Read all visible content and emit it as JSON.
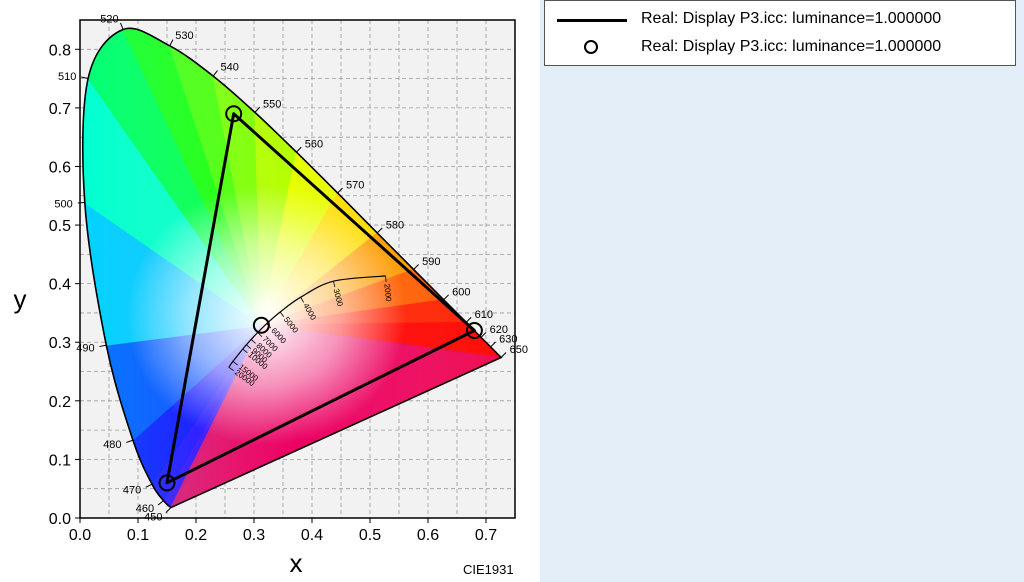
{
  "legend": {
    "entries": [
      {
        "label": "Real: Display P3.icc: luminance=1.000000",
        "symbol": "line"
      },
      {
        "label": "Real: Display P3.icc: luminance=1.000000",
        "symbol": "circle"
      }
    ]
  },
  "footer_label": "CIE1931",
  "chart_data": {
    "type": "scatter",
    "xlabel": "x",
    "ylabel": "y",
    "xlim": [
      0.0,
      0.75
    ],
    "ylim": [
      0.0,
      0.85
    ],
    "xticks": [
      "0.0",
      "0.1",
      "0.2",
      "0.3",
      "0.4",
      "0.5",
      "0.6",
      "0.7"
    ],
    "yticks": [
      "0.0",
      "0.1",
      "0.2",
      "0.3",
      "0.4",
      "0.5",
      "0.6",
      "0.7",
      "0.8"
    ],
    "grid": true,
    "legend_placement": "top-right",
    "spectral_locus": [
      {
        "wl": "450",
        "x": 0.1566,
        "y": 0.0177
      },
      {
        "wl": "460",
        "x": 0.144,
        "y": 0.0297
      },
      {
        "wl": "470",
        "x": 0.1241,
        "y": 0.0578
      },
      {
        "wl": "480",
        "x": 0.0913,
        "y": 0.1327
      },
      {
        "wl": "490",
        "x": 0.0454,
        "y": 0.295
      },
      {
        "wl": "500",
        "x": 0.0082,
        "y": 0.5384
      },
      {
        "wl": "510",
        "x": 0.0139,
        "y": 0.7502
      },
      {
        "wl": "520",
        "x": 0.0743,
        "y": 0.8338
      },
      {
        "wl": "530",
        "x": 0.1547,
        "y": 0.8059
      },
      {
        "wl": "540",
        "x": 0.2296,
        "y": 0.7543
      },
      {
        "wl": "550",
        "x": 0.3016,
        "y": 0.6923
      },
      {
        "wl": "560",
        "x": 0.3731,
        "y": 0.6245
      },
      {
        "wl": "570",
        "x": 0.4441,
        "y": 0.5547
      },
      {
        "wl": "580",
        "x": 0.5125,
        "y": 0.4866
      },
      {
        "wl": "590",
        "x": 0.5752,
        "y": 0.4242
      },
      {
        "wl": "600",
        "x": 0.627,
        "y": 0.3725
      },
      {
        "wl": "610",
        "x": 0.6658,
        "y": 0.334
      },
      {
        "wl": "620",
        "x": 0.6915,
        "y": 0.3083
      },
      {
        "wl": "630",
        "x": 0.7079,
        "y": 0.292
      },
      {
        "wl": "650",
        "x": 0.726,
        "y": 0.274
      }
    ],
    "planckian_locus": [
      {
        "T": "2000",
        "x": 0.5267,
        "y": 0.4133
      },
      {
        "T": "3000",
        "x": 0.4369,
        "y": 0.4041
      },
      {
        "T": "4000",
        "x": 0.3805,
        "y": 0.3768
      },
      {
        "T": "5000",
        "x": 0.3451,
        "y": 0.3516
      },
      {
        "T": "6000",
        "x": 0.3221,
        "y": 0.3318
      },
      {
        "T": "7000",
        "x": 0.3064,
        "y": 0.3166
      },
      {
        "T": "8000",
        "x": 0.2952,
        "y": 0.3048
      },
      {
        "T": "9000",
        "x": 0.2869,
        "y": 0.2956
      },
      {
        "T": "10000",
        "x": 0.2806,
        "y": 0.2883
      },
      {
        "T": "15000",
        "x": 0.2637,
        "y": 0.2673
      },
      {
        "T": "20000",
        "x": 0.2565,
        "y": 0.2573
      }
    ],
    "series": [
      {
        "name": "Real: Display P3.icc: luminance=1.000000",
        "kind": "line",
        "points": [
          {
            "x": 0.68,
            "y": 0.32
          },
          {
            "x": 0.265,
            "y": 0.69
          },
          {
            "x": 0.15,
            "y": 0.06
          }
        ]
      },
      {
        "name": "Real: Display P3.icc: luminance=1.000000",
        "kind": "marker",
        "points": [
          {
            "x": 0.68,
            "y": 0.32
          },
          {
            "x": 0.265,
            "y": 0.69
          },
          {
            "x": 0.15,
            "y": 0.06
          },
          {
            "x": 0.3127,
            "y": 0.329
          }
        ]
      }
    ]
  }
}
